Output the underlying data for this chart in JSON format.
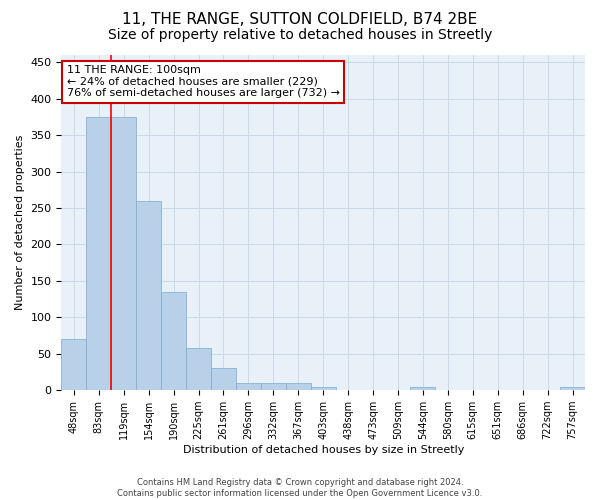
{
  "title": "11, THE RANGE, SUTTON COLDFIELD, B74 2BE",
  "subtitle": "Size of property relative to detached houses in Streetly",
  "xlabel": "Distribution of detached houses by size in Streetly",
  "ylabel": "Number of detached properties",
  "footer_line1": "Contains HM Land Registry data © Crown copyright and database right 2024.",
  "footer_line2": "Contains public sector information licensed under the Open Government Licence v3.0.",
  "bar_labels": [
    "48sqm",
    "83sqm",
    "119sqm",
    "154sqm",
    "190sqm",
    "225sqm",
    "261sqm",
    "296sqm",
    "332sqm",
    "367sqm",
    "403sqm",
    "438sqm",
    "473sqm",
    "509sqm",
    "544sqm",
    "580sqm",
    "615sqm",
    "651sqm",
    "686sqm",
    "722sqm",
    "757sqm"
  ],
  "bar_values": [
    70,
    375,
    375,
    260,
    135,
    58,
    30,
    10,
    10,
    10,
    5,
    0,
    0,
    0,
    4,
    0,
    0,
    0,
    0,
    0,
    4
  ],
  "bar_color": "#b8d0e8",
  "bar_edge_color": "#7aaad0",
  "annotation_line1": "11 THE RANGE: 100sqm",
  "annotation_line2": "← 24% of detached houses are smaller (229)",
  "annotation_line3": "76% of semi-detached houses are larger (732) →",
  "annotation_box_color": "#ffffff",
  "annotation_box_edge": "#cc0000",
  "redline_x": 1.5,
  "ylim": [
    0,
    460
  ],
  "yticks": [
    0,
    50,
    100,
    150,
    200,
    250,
    300,
    350,
    400,
    450
  ],
  "grid_color": "#ccdae8",
  "background_color": "#e8f0f8",
  "title_fontsize": 11,
  "subtitle_fontsize": 10,
  "axis_label_fontsize": 8,
  "tick_fontsize": 8,
  "footer_fontsize": 6
}
